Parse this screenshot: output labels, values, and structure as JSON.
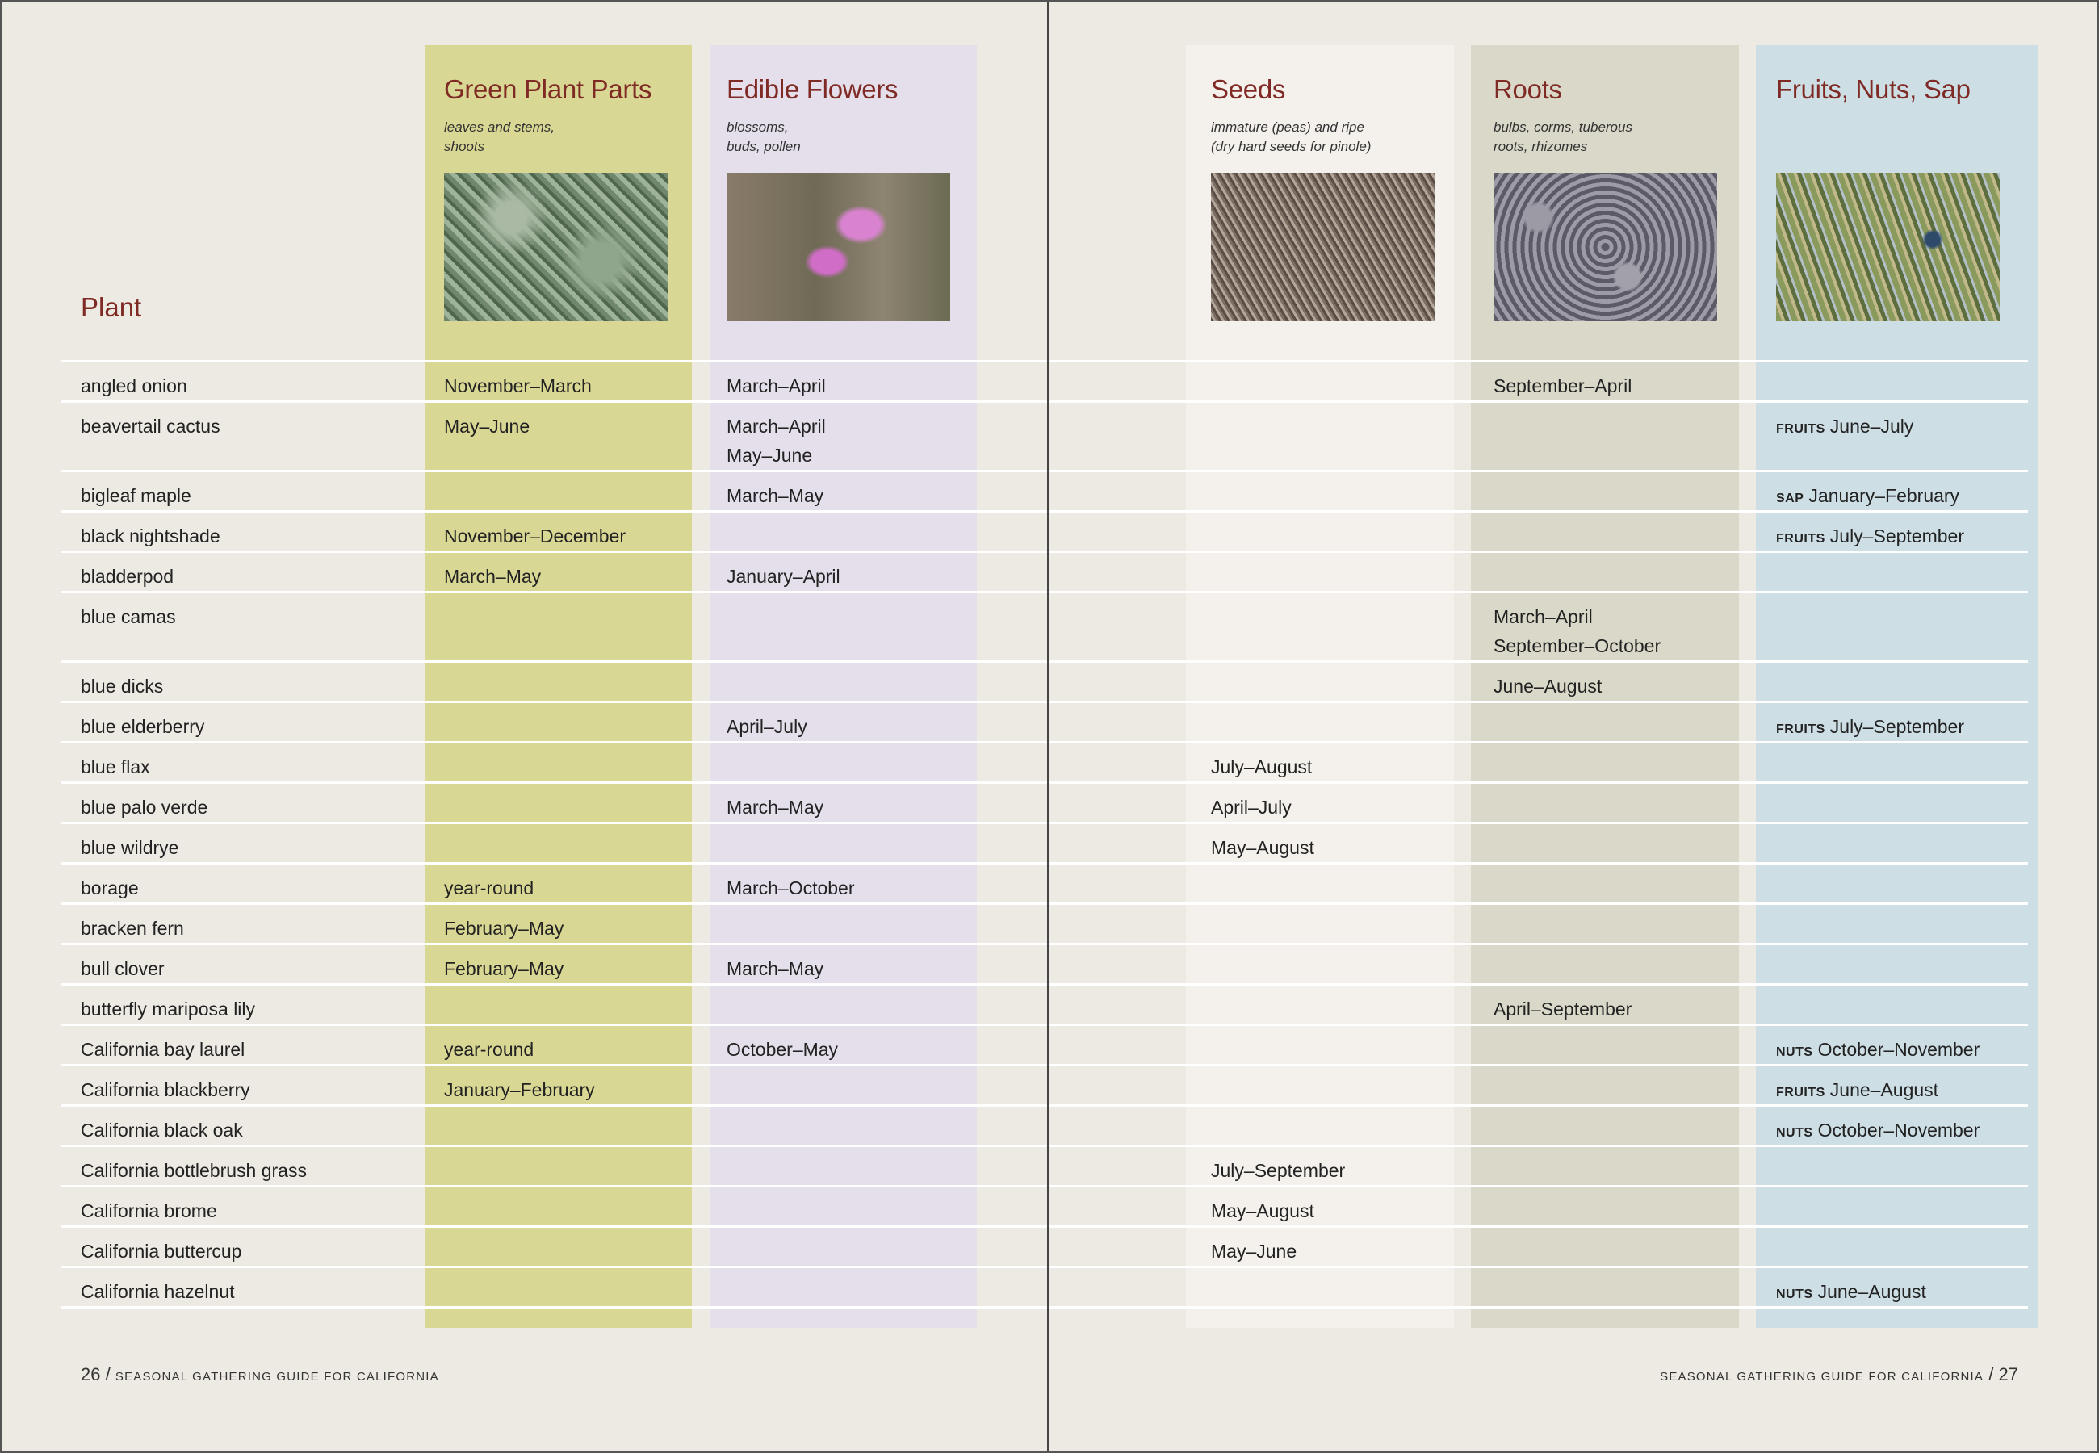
{
  "plant_header": "Plant",
  "categories": [
    {
      "title": "Green Plant Parts",
      "subtitle": [
        "leaves and stems,",
        "shoots"
      ],
      "color": "#d9d794"
    },
    {
      "title": "Edible Flowers",
      "subtitle": [
        "blossoms,",
        "buds, pollen"
      ],
      "color": "#e4dfea"
    },
    {
      "title": "Seeds",
      "subtitle": [
        "immature (peas) and ripe",
        "(dry hard seeds for pinole)"
      ],
      "color": "#f4f1ec"
    },
    {
      "title": "Roots",
      "subtitle": [
        "bulbs, corms, tuberous",
        "roots, rhizomes"
      ],
      "color": "#dad8c8"
    },
    {
      "title": "Fruits, Nuts, Sap",
      "subtitle": [],
      "color": "#cddfe5"
    }
  ],
  "rows": [
    {
      "plant": "angled onion",
      "green": [
        "November–March"
      ],
      "flowers": [
        "March–April"
      ],
      "seeds": [],
      "roots": [
        "September–April"
      ],
      "fruit": null
    },
    {
      "plant": "beavertail cactus",
      "green": [
        "May–June"
      ],
      "flowers": [
        "March–April",
        "May–June"
      ],
      "seeds": [],
      "roots": [],
      "fruit": {
        "prefix": "FRUITS",
        "value": "June–July"
      }
    },
    {
      "plant": "bigleaf maple",
      "green": [],
      "flowers": [
        "March–May"
      ],
      "seeds": [],
      "roots": [],
      "fruit": {
        "prefix": "SAP",
        "value": "January–February"
      }
    },
    {
      "plant": "black nightshade",
      "green": [
        "November–December"
      ],
      "flowers": [],
      "seeds": [],
      "roots": [],
      "fruit": {
        "prefix": "FRUITS",
        "value": "July–September"
      }
    },
    {
      "plant": "bladderpod",
      "green": [
        "March–May"
      ],
      "flowers": [
        "January–April"
      ],
      "seeds": [],
      "roots": [],
      "fruit": null
    },
    {
      "plant": "blue camas",
      "green": [],
      "flowers": [],
      "seeds": [],
      "roots": [
        "March–April",
        "September–October"
      ],
      "fruit": null
    },
    {
      "plant": "blue dicks",
      "green": [],
      "flowers": [],
      "seeds": [],
      "roots": [
        "June–August"
      ],
      "fruit": null
    },
    {
      "plant": "blue elderberry",
      "green": [],
      "flowers": [
        "April–July"
      ],
      "seeds": [],
      "roots": [],
      "fruit": {
        "prefix": "FRUITS",
        "value": "July–September"
      }
    },
    {
      "plant": "blue flax",
      "green": [],
      "flowers": [],
      "seeds": [
        "July–August"
      ],
      "roots": [],
      "fruit": null
    },
    {
      "plant": "blue palo verde",
      "green": [],
      "flowers": [
        "March–May"
      ],
      "seeds": [
        "April–July"
      ],
      "roots": [],
      "fruit": null
    },
    {
      "plant": "blue wildrye",
      "green": [],
      "flowers": [],
      "seeds": [
        "May–August"
      ],
      "roots": [],
      "fruit": null
    },
    {
      "plant": "borage",
      "green": [
        "year-round"
      ],
      "flowers": [
        "March–October"
      ],
      "seeds": [],
      "roots": [],
      "fruit": null
    },
    {
      "plant": "bracken fern",
      "green": [
        "February–May"
      ],
      "flowers": [],
      "seeds": [],
      "roots": [],
      "fruit": null
    },
    {
      "plant": "bull clover",
      "green": [
        "February–May"
      ],
      "flowers": [
        "March–May"
      ],
      "seeds": [],
      "roots": [],
      "fruit": null
    },
    {
      "plant": "butterfly mariposa lily",
      "green": [],
      "flowers": [],
      "seeds": [],
      "roots": [
        "April–September"
      ],
      "fruit": null
    },
    {
      "plant": "California bay laurel",
      "green": [
        "year-round"
      ],
      "flowers": [
        "October–May"
      ],
      "seeds": [],
      "roots": [],
      "fruit": {
        "prefix": "NUTS",
        "value": "October–November"
      }
    },
    {
      "plant": "California blackberry",
      "green": [
        "January–February"
      ],
      "flowers": [],
      "seeds": [],
      "roots": [],
      "fruit": {
        "prefix": "FRUITS",
        "value": "June–August"
      }
    },
    {
      "plant": "California black oak",
      "green": [],
      "flowers": [],
      "seeds": [],
      "roots": [],
      "fruit": {
        "prefix": "NUTS",
        "value": "October–November"
      }
    },
    {
      "plant": "California bottlebrush grass",
      "green": [],
      "flowers": [],
      "seeds": [
        "July–September"
      ],
      "roots": [],
      "fruit": null
    },
    {
      "plant": "California brome",
      "green": [],
      "flowers": [],
      "seeds": [
        "May–August"
      ],
      "roots": [],
      "fruit": null
    },
    {
      "plant": "California buttercup",
      "green": [],
      "flowers": [],
      "seeds": [
        "May–June"
      ],
      "roots": [],
      "fruit": null
    },
    {
      "plant": "California hazelnut",
      "green": [],
      "flowers": [],
      "seeds": [],
      "roots": [],
      "fruit": {
        "prefix": "NUTS",
        "value": "June–August"
      }
    }
  ],
  "footer": {
    "left_page": "26",
    "right_page": "27",
    "separator": "/",
    "title": "Seasonal Gathering Guide for California"
  },
  "images": [
    "green-leaves-photo",
    "pink-flower-photo",
    "seeds-photo",
    "roots-bulbs-photo",
    "fruits-photo"
  ]
}
